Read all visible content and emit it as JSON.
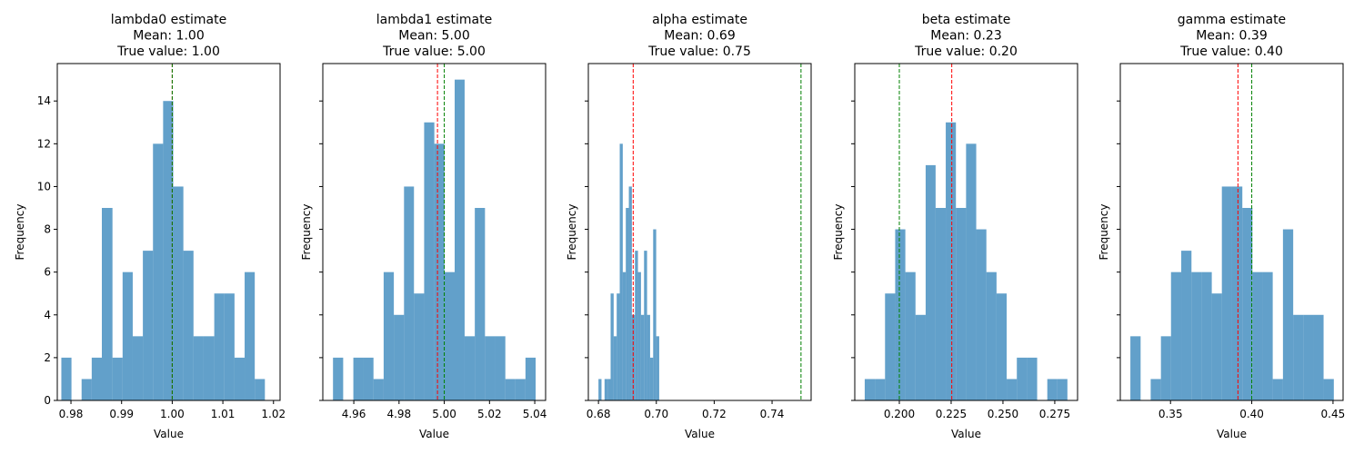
{
  "chart_data": [
    {
      "type": "histogram",
      "title": [
        "lambda0 estimate",
        "Mean: 1.00",
        "True value: 1.00"
      ],
      "x_label": "Value",
      "y_label": "Frequency",
      "color": "#1f77b4",
      "bins": [
        0.9781,
        0.9801,
        0.9821,
        0.9841,
        0.9861,
        0.9882,
        0.9902,
        0.9922,
        0.9942,
        0.9962,
        0.9982,
        1.0002,
        1.0022,
        1.0042,
        1.0062,
        1.0083,
        1.0103,
        1.0123,
        1.0143,
        1.0163,
        1.0183
      ],
      "values": [
        2,
        0,
        1,
        2,
        9,
        2,
        6,
        3,
        7,
        12,
        14,
        10,
        7,
        3,
        3,
        5,
        5,
        2,
        6,
        1
      ],
      "xlim": [
        0.9773,
        1.0213
      ],
      "xticks": [
        0.98,
        0.99,
        {
          "value": 1.0,
          "label": "1.00"
        },
        1.01,
        1.02
      ],
      "ylim": [
        0,
        15.75
      ],
      "yticks": [
        0,
        2,
        4,
        6,
        8,
        10,
        12,
        14
      ],
      "lines": [
        {
          "value": 1.0,
          "color": "red"
        },
        {
          "value": 1.0,
          "color": "green"
        }
      ]
    },
    {
      "type": "histogram",
      "title": [
        "lambda1 estimate",
        "Mean: 5.00",
        "True value: 5.00"
      ],
      "x_label": "Value",
      "y_label": "Frequency",
      "color": "#1f77b4",
      "bins": [
        4.9508,
        4.9553,
        4.9598,
        4.9642,
        4.9687,
        4.9732,
        4.9777,
        4.9822,
        4.9866,
        4.9911,
        4.9956,
        5.0001,
        5.0046,
        5.009,
        5.0135,
        5.018,
        5.0225,
        5.027,
        5.0314,
        5.0359,
        5.0404
      ],
      "values": [
        2,
        0,
        2,
        2,
        1,
        6,
        4,
        10,
        5,
        13,
        12,
        6,
        15,
        3,
        9,
        3,
        3,
        1,
        1,
        2
      ],
      "xlim": [
        4.9463,
        5.0448
      ],
      "xticks": [
        4.96,
        4.98,
        {
          "value": 5.0,
          "label": "5.00"
        },
        5.02,
        5.04
      ],
      "lines": [
        {
          "value": 4.997,
          "color": "red"
        },
        {
          "value": 5.0,
          "color": "green"
        }
      ]
    },
    {
      "type": "histogram",
      "title": [
        "alpha estimate",
        "Mean: 0.69",
        "True value: 0.75"
      ],
      "x_label": "Value",
      "y_label": "Frequency",
      "color": "#1f77b4",
      "bins": [
        0.68,
        0.68105,
        0.6821,
        0.68315,
        0.6842,
        0.68525,
        0.6863,
        0.68735,
        0.6884,
        0.68945,
        0.6905,
        0.69155,
        0.6926,
        0.69365,
        0.6947,
        0.69575,
        0.6968,
        0.69785,
        0.6989,
        0.69995,
        0.701
      ],
      "values": [
        1,
        0,
        1,
        1,
        5,
        3,
        5,
        12,
        6,
        9,
        10,
        4,
        7,
        6,
        4,
        7,
        4,
        2,
        8,
        3
      ],
      "xlim": [
        0.6765,
        0.7535
      ],
      "xticks": [
        0.68,
        {
          "value": 0.7,
          "label": "0.70"
        },
        0.72,
        0.74
      ],
      "lines": [
        {
          "value": 0.692,
          "color": "red"
        },
        {
          "value": 0.75,
          "color": "green"
        }
      ]
    },
    {
      "type": "histogram",
      "title": [
        "beta estimate",
        "Mean: 0.23",
        "True value: 0.20"
      ],
      "x_label": "Value",
      "y_label": "Frequency",
      "color": "#1f77b4",
      "bins": [
        0.1833,
        0.1882,
        0.1931,
        0.198,
        0.2029,
        0.2078,
        0.2127,
        0.2175,
        0.2224,
        0.2273,
        0.2322,
        0.2371,
        0.242,
        0.2469,
        0.2518,
        0.2567,
        0.2616,
        0.2665,
        0.2714,
        0.2762,
        0.2811
      ],
      "values": [
        1,
        1,
        5,
        8,
        6,
        4,
        11,
        9,
        13,
        9,
        12,
        8,
        6,
        5,
        1,
        2,
        2,
        0,
        1,
        1
      ],
      "xlim": [
        0.1785,
        0.286
      ],
      "xticks": [
        {
          "value": 0.2,
          "label": "0.200"
        },
        0.225,
        {
          "value": 0.25,
          "label": "0.250"
        },
        0.275
      ],
      "lines": [
        {
          "value": 0.2253,
          "color": "red"
        },
        {
          "value": 0.2,
          "color": "green"
        }
      ]
    },
    {
      "type": "histogram",
      "title": [
        "gamma estimate",
        "Mean: 0.39",
        "True value: 0.40"
      ],
      "x_label": "Value",
      "y_label": "Frequency",
      "color": "#1f77b4",
      "bins": [
        0.3253,
        0.3316,
        0.3378,
        0.3441,
        0.3503,
        0.3566,
        0.3629,
        0.3691,
        0.3754,
        0.3816,
        0.3879,
        0.3942,
        0.4004,
        0.4067,
        0.4129,
        0.4192,
        0.4255,
        0.4317,
        0.438,
        0.4442,
        0.4505
      ],
      "values": [
        3,
        0,
        1,
        3,
        6,
        7,
        6,
        6,
        5,
        10,
        10,
        9,
        6,
        6,
        1,
        8,
        4,
        4,
        4,
        1
      ],
      "xlim": [
        0.3191,
        0.4562
      ],
      "xticks": [
        0.35,
        {
          "value": 0.4,
          "label": "0.40"
        },
        0.45
      ],
      "lines": [
        {
          "value": 0.3915,
          "color": "red"
        },
        {
          "value": 0.4,
          "color": "green"
        }
      ]
    }
  ]
}
